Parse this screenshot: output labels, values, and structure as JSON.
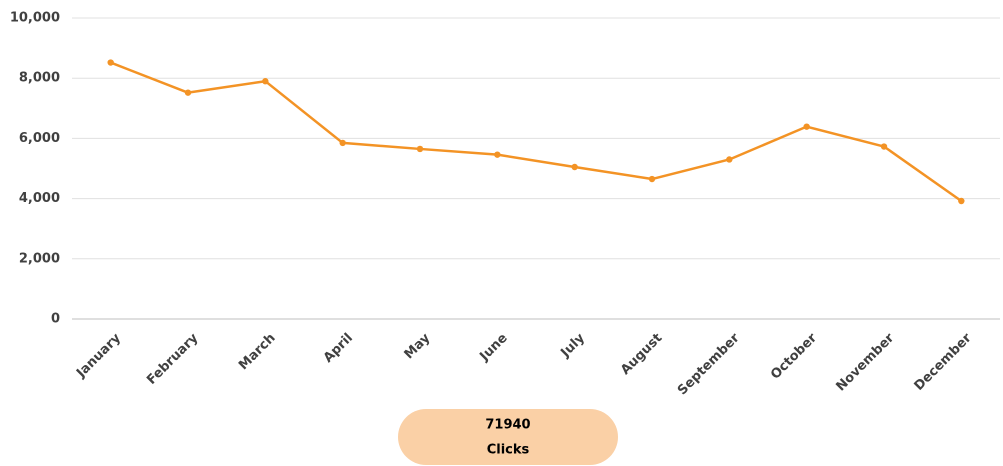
{
  "chart_data": {
    "type": "line",
    "categories": [
      "January",
      "February",
      "March",
      "April",
      "May",
      "June",
      "July",
      "August",
      "September",
      "October",
      "November",
      "December"
    ],
    "series": [
      {
        "name": "Clicks",
        "color": "#f39325",
        "values": [
          8520,
          7520,
          7900,
          5850,
          5650,
          5460,
          5050,
          4650,
          5300,
          6390,
          5730,
          3920
        ]
      }
    ],
    "ylim": [
      0,
      10000
    ],
    "yticks": [
      0,
      {
        "value": 2000,
        "label": "2,000"
      },
      {
        "value": 4000,
        "label": "4,000"
      },
      {
        "value": 6000,
        "label": "6,000"
      },
      {
        "value": 8000,
        "label": "8,000"
      },
      {
        "value": 10000,
        "label": "10,000"
      }
    ],
    "grid": true,
    "total": 71940,
    "total_label": "Clicks"
  }
}
